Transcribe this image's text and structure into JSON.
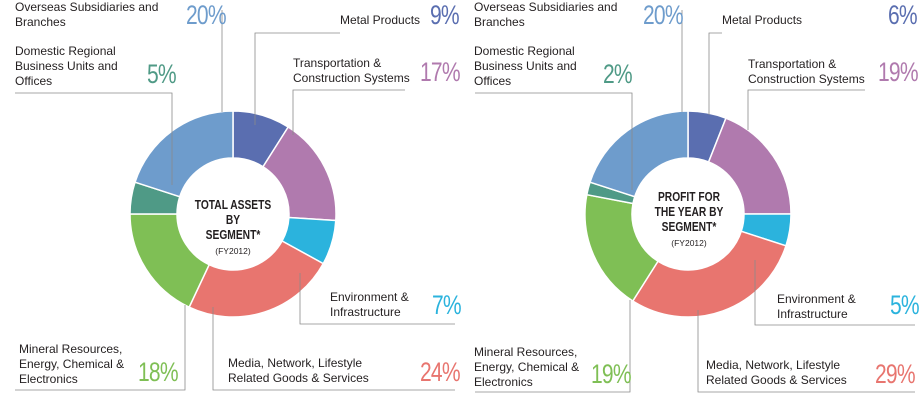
{
  "colors": {
    "metal": "#5a6eb0",
    "transport": "#b07aae",
    "environment": "#2bb3dd",
    "media": "#e8756f",
    "mineral": "#7fbf55",
    "domestic": "#4f9a86",
    "overseas": "#6e9ccc",
    "pct_metal": "#5a6eb0",
    "pct_transport": "#b07aae",
    "pct_environment": "#2bb3dd",
    "pct_media": "#e8756f",
    "pct_mineral": "#7fbf55",
    "pct_domestic": "#4f9a86",
    "pct_overseas": "#6e9ccc"
  },
  "chart_data": [
    {
      "type": "pie",
      "title": "TOTAL ASSETS BY SEGMENT*",
      "subtitle": "(FY2012)",
      "slices": [
        {
          "key": "metal",
          "label": "Metal Products",
          "value": 9,
          "display": "9%"
        },
        {
          "key": "transport",
          "label": "Transportation & Construction Systems",
          "value": 17,
          "display": "17%"
        },
        {
          "key": "environment",
          "label": "Environment & Infrastructure",
          "value": 7,
          "display": "7%"
        },
        {
          "key": "media",
          "label": "Media, Network, Lifestyle Related Goods & Services",
          "value": 24,
          "display": "24%"
        },
        {
          "key": "mineral",
          "label": "Mineral Resources, Energy, Chemical & Electronics",
          "value": 18,
          "display": "18%"
        },
        {
          "key": "domestic",
          "label": "Domestic Regional Business Units and Offices",
          "value": 5,
          "display": "5%"
        },
        {
          "key": "overseas",
          "label": "Overseas Subsidiaries and Branches",
          "value": 20,
          "display": "20%"
        }
      ]
    },
    {
      "type": "pie",
      "title": "PROFIT FOR THE YEAR BY SEGMENT*",
      "subtitle": "(FY2012)",
      "slices": [
        {
          "key": "metal",
          "label": "Metal Products",
          "value": 6,
          "display": "6%"
        },
        {
          "key": "transport",
          "label": "Transportation & Construction Systems",
          "value": 19,
          "display": "19%"
        },
        {
          "key": "environment",
          "label": "Environment & Infrastructure",
          "value": 5,
          "display": "5%"
        },
        {
          "key": "media",
          "label": "Media, Network, Lifestyle Related Goods & Services",
          "value": 29,
          "display": "29%"
        },
        {
          "key": "mineral",
          "label": "Mineral Resources, Energy, Chemical & Electronics",
          "value": 19,
          "display": "19%"
        },
        {
          "key": "domestic",
          "label": "Domestic Regional Business Units and Offices",
          "value": 2,
          "display": "2%"
        },
        {
          "key": "overseas",
          "label": "Overseas Subsidiaries and Branches",
          "value": 20,
          "display": "20%"
        }
      ]
    }
  ],
  "panels": [
    {
      "center_title_lines": [
        "TOTAL ASSETS BY",
        "SEGMENT*"
      ],
      "center_sub": "(FY2012)",
      "labels": {
        "overseas": [
          "Overseas Subsidiaries and",
          "Branches"
        ],
        "domestic": [
          "Domestic Regional",
          "Business Units and",
          "Offices"
        ],
        "metal": [
          "Metal Products"
        ],
        "transport": [
          "Transportation &",
          "Construction Systems"
        ],
        "environment": [
          "Environment &",
          "Infrastructure"
        ],
        "media": [
          "Media, Network, Lifestyle",
          "Related Goods & Services"
        ],
        "mineral": [
          "Mineral Resources,",
          "Energy, Chemical &",
          "Electronics"
        ]
      }
    },
    {
      "center_title_lines": [
        "PROFIT FOR",
        "THE YEAR BY",
        "SEGMENT*"
      ],
      "center_sub": "(FY2012)",
      "labels": {
        "overseas": [
          "Overseas Subsidiaries and",
          "Branches"
        ],
        "domestic": [
          "Domestic Regional",
          "Business Units and",
          "Offices"
        ],
        "metal": [
          "Metal Products"
        ],
        "transport": [
          "Transportation &",
          "Construction Systems"
        ],
        "environment": [
          "Environment &",
          "Infrastructure"
        ],
        "media": [
          "Media, Network, Lifestyle",
          "Related Goods & Services"
        ],
        "mineral": [
          "Mineral Resources,",
          "Energy, Chemical &",
          "Electronics"
        ]
      }
    }
  ]
}
